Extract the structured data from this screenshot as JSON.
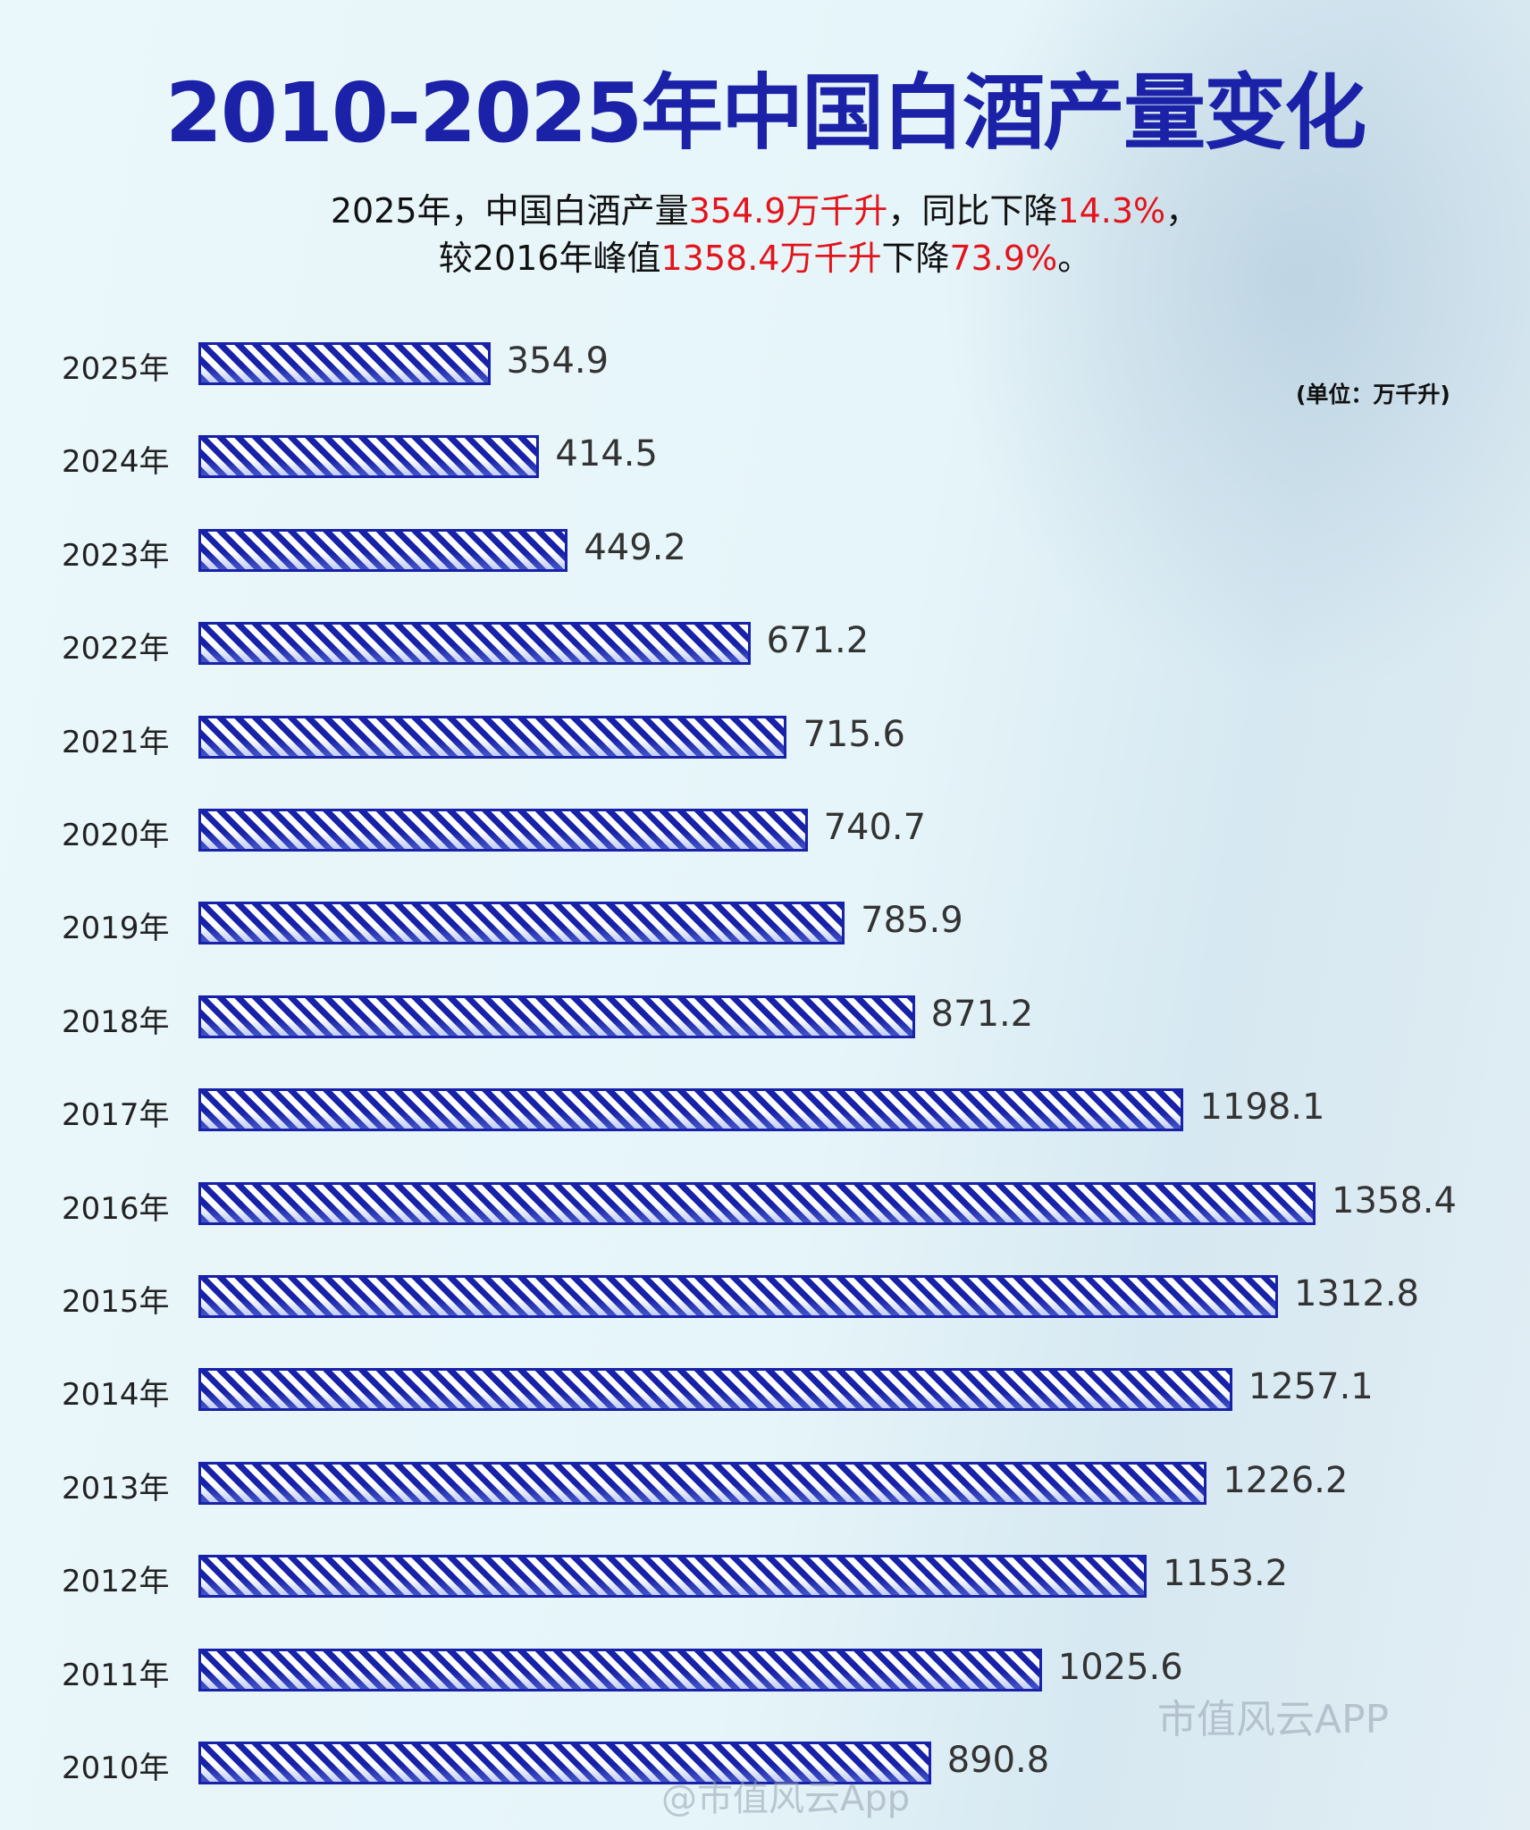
{
  "chart_data": {
    "type": "bar",
    "orientation": "horizontal",
    "title": "2010-2025年中国白酒产量变化",
    "subtitle": {
      "line1": [
        "2025年，中国白酒产量",
        "354.9万千升",
        "，同比下降",
        "14.3%",
        "，"
      ],
      "line2": [
        "较2016年峰值",
        "1358.4万千升",
        "下降",
        "73.9%",
        "。"
      ]
    },
    "unit_label": "(单位：万千升)",
    "categories": [
      "2025年",
      "2024年",
      "2023年",
      "2022年",
      "2021年",
      "2020年",
      "2019年",
      "2018年",
      "2017年",
      "2016年",
      "2015年",
      "2014年",
      "2013年",
      "2012年",
      "2011年",
      "2010年"
    ],
    "values": [
      354.9,
      414.5,
      449.2,
      671.2,
      715.6,
      740.7,
      785.9,
      871.2,
      1198.1,
      1358.4,
      1312.8,
      1257.1,
      1226.2,
      1153.2,
      1025.6,
      890.8
    ],
    "value_labels": [
      "354.9",
      "414.5",
      "449.2",
      "671.2",
      "715.6",
      "740.7",
      "785.9",
      "871.2",
      "1198.1",
      "1358.4",
      "1312.8",
      "1257.1",
      "1226.2",
      "1153.2",
      "1025.6",
      "890.8"
    ],
    "bar_color": "#1722a8",
    "highlight_color": "#e3141b",
    "title_color": "#1b22a8",
    "grid": false,
    "legend": "none"
  },
  "watermarks": [
    "市值风云APP",
    "@市值风云App"
  ]
}
